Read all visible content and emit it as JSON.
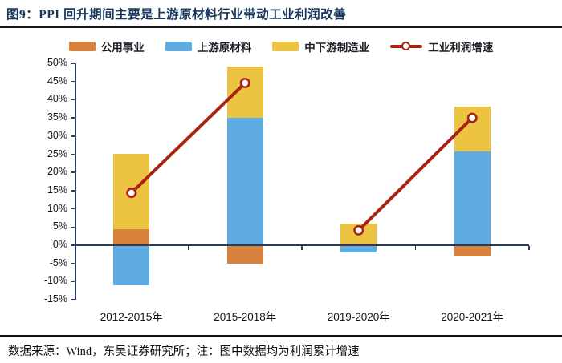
{
  "page": {
    "title": "图9：PPI 回升期间主要是上游原材料行业带动工业利润改善",
    "footer": "数据来源：Wind，东吴证券研究所；注：图中数据均为利润累计增速"
  },
  "legend": {
    "items": [
      {
        "id": "utilities",
        "label": "公用事业",
        "color": "#D9823E",
        "marker": "box"
      },
      {
        "id": "upstream",
        "label": "上游原材料",
        "color": "#5FACE3",
        "marker": "box"
      },
      {
        "id": "mid-downstream",
        "label": "中下游制造业",
        "color": "#EDC342",
        "marker": "box"
      },
      {
        "id": "profit-growth",
        "label": "工业利润增速",
        "color": "#A92315",
        "marker": "line-circle"
      }
    ]
  },
  "chart_data": {
    "type": "bar",
    "subtype": "stacked-bar-with-line-overlay",
    "title": "PPI 回升期间主要是上游原材料行业带动工业利润改善",
    "categories": [
      "2012-2015年",
      "2015-2018年",
      "2019-2020年",
      "2020-2021年"
    ],
    "series": [
      {
        "id": "utilities",
        "name": "公用事业",
        "type": "bar",
        "color": "#D9823E",
        "values": [
          4.5,
          -5,
          0.5,
          -3
        ]
      },
      {
        "id": "upstream",
        "name": "上游原材料",
        "type": "bar",
        "color": "#5FACE3",
        "values": [
          -11,
          35,
          -2,
          25.8
        ]
      },
      {
        "id": "mid-downstream",
        "name": "中下游制造业",
        "type": "bar",
        "color": "#EDC342",
        "values": [
          20.7,
          14.2,
          5.5,
          12.4
        ]
      },
      {
        "id": "profit-growth",
        "name": "工业利润增速",
        "type": "line",
        "color": "#A92315",
        "values": [
          14.4,
          44.6,
          4.1,
          35.0
        ]
      }
    ],
    "line_segments": [
      [
        0,
        1
      ],
      [
        2,
        3
      ]
    ],
    "stacking": "signed",
    "unit": "%",
    "ylim": [
      -15,
      50
    ],
    "ytick_step": 5,
    "ytick_labels": [
      "50%",
      "45%",
      "40%",
      "35%",
      "30%",
      "25%",
      "20%",
      "15%",
      "10%",
      "5%",
      "0%",
      "-5%",
      "-10%",
      "-15%"
    ],
    "xlabel": "",
    "ylabel": "",
    "grid": false,
    "legend_position": "top",
    "axis_color": "#2B3A5F"
  }
}
